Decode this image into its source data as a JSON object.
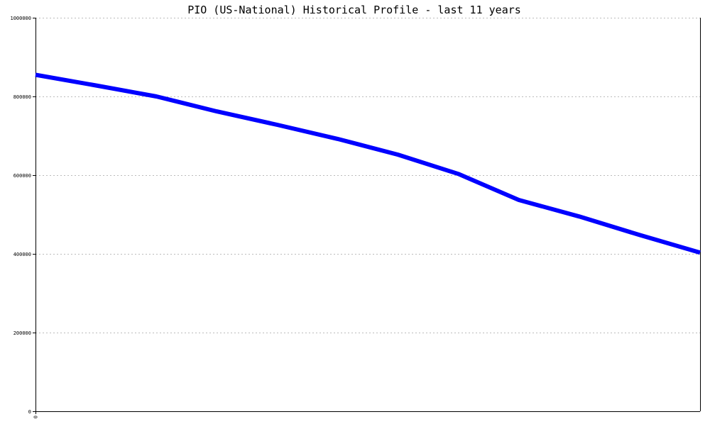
{
  "chart_data": {
    "type": "line",
    "title": "PIO (US-National) Historical Profile - last 11 years",
    "xlabel": "",
    "ylabel": "",
    "x_tick_labels": [
      "0"
    ],
    "y_ticks": [
      0,
      200000,
      400000,
      600000,
      800000,
      1000000
    ],
    "y_tick_labels": [
      "0",
      "200000",
      "400000",
      "600000",
      "800000",
      "1000000"
    ],
    "ylim": [
      0,
      1000000
    ],
    "xlim": [
      0,
      11
    ],
    "grid": true,
    "series": [
      {
        "color": "#0000ff",
        "x": [
          0,
          1,
          2,
          3,
          4,
          5,
          6,
          7,
          8,
          9,
          10,
          11
        ],
        "values": [
          855000,
          828000,
          800000,
          762000,
          728000,
          692000,
          652000,
          603000,
          537000,
          495000,
          448000,
          403000
        ]
      }
    ]
  }
}
